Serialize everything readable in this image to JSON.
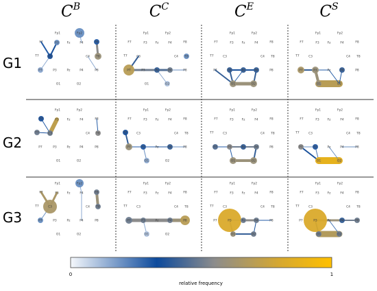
{
  "columns": [
    {
      "base": "C",
      "sup": "B"
    },
    {
      "base": "C",
      "sup": "C"
    },
    {
      "base": "C",
      "sup": "E"
    },
    {
      "base": "C",
      "sup": "S"
    }
  ],
  "rows": [
    "G1",
    "G2",
    "G3"
  ],
  "electrodes": [
    "Fp1",
    "Fp2",
    "F7",
    "F3",
    "Fz",
    "F4",
    "F8",
    "T7",
    "C3",
    "C4",
    "T8",
    "P7",
    "P3",
    "Pz",
    "P4",
    "P8",
    "O1",
    "O2"
  ],
  "colorbar": {
    "min_label": "0",
    "max_label": "1",
    "caption": "relative frequency",
    "stops": [
      "#f5f8fc",
      "#0d4a9c",
      "#8c8c8c",
      "#d6a830",
      "#ffc000"
    ]
  },
  "panels": [
    {
      "row": 0,
      "col": 0,
      "nodes": {
        "Fp2": {
          "f": 0.2,
          "r": 7
        },
        "F3": {
          "f": 0.2,
          "r": 4
        },
        "C3": {
          "f": 0.35,
          "r": 4
        },
        "F8": {
          "f": 0.3,
          "r": 4
        },
        "T8": {
          "f": 0.6,
          "r": 5
        },
        "P7": {
          "f": 0.15,
          "r": 4
        }
      },
      "edges": [
        [
          "F7",
          "C3",
          0.3,
          2
        ],
        [
          "C3",
          "P7",
          0.15,
          1
        ],
        [
          "C3",
          "F3",
          0.35,
          2
        ],
        [
          "Fp2",
          "F4",
          0.15,
          1
        ],
        [
          "F8",
          "T8",
          0.55,
          3
        ],
        [
          "C4",
          "P8",
          0.15,
          1
        ]
      ]
    },
    {
      "row": 0,
      "col": 1,
      "nodes": {
        "P7": {
          "f": 0.7,
          "r": 8
        },
        "O2": {
          "f": 0.1,
          "r": 4
        },
        "P4": {
          "f": 0.5,
          "r": 4
        },
        "T8": {
          "f": 0.2,
          "r": 4
        },
        "Pz": {
          "f": 0.4,
          "r": 4
        }
      },
      "edges": [
        [
          "P7",
          "Pz",
          0.5,
          3
        ],
        [
          "Pz",
          "P4",
          0.45,
          3
        ],
        [
          "Pz",
          "O2",
          0.15,
          1
        ],
        [
          "P4",
          "P8",
          0.2,
          1
        ],
        [
          "C3",
          "P7",
          0.4,
          2
        ]
      ]
    },
    {
      "row": 0,
      "col": 2,
      "nodes": {
        "P3": {
          "f": 0.4,
          "r": 4
        },
        "P4": {
          "f": 0.4,
          "r": 4
        },
        "Pz": {
          "f": 0.4,
          "r": 4
        },
        "O1": {
          "f": 0.6,
          "r": 5
        },
        "O2": {
          "f": 0.6,
          "r": 5
        }
      },
      "edges": [
        [
          "O1",
          "O2",
          0.6,
          5
        ],
        [
          "P7",
          "O1",
          0.4,
          2
        ],
        [
          "P3",
          "O1",
          0.4,
          2
        ],
        [
          "P4",
          "O2",
          0.4,
          2
        ],
        [
          "P3",
          "Pz",
          0.35,
          2
        ],
        [
          "Pz",
          "P4",
          0.35,
          2
        ],
        [
          "Pz",
          "O1",
          0.3,
          1
        ]
      ]
    },
    {
      "row": 0,
      "col": 3,
      "nodes": {
        "P7": {
          "f": 0.65,
          "r": 5
        },
        "P3": {
          "f": 0.6,
          "r": 5
        },
        "O1": {
          "f": 0.6,
          "r": 4
        },
        "P4": {
          "f": 0.4,
          "r": 4
        }
      },
      "edges": [
        [
          "O1",
          "O2",
          0.7,
          10
        ],
        [
          "P3",
          "O1",
          0.6,
          4
        ],
        [
          "P7",
          "P3",
          0.4,
          2
        ],
        [
          "Pz",
          "O2",
          0.3,
          1
        ],
        [
          "P4",
          "O2",
          0.3,
          1
        ],
        [
          "P3",
          "Pz",
          0.3,
          1
        ]
      ]
    },
    {
      "row": 1,
      "col": 0,
      "nodes": {
        "F7": {
          "f": 0.35,
          "r": 4
        },
        "T7": {
          "f": 0.5,
          "r": 4
        },
        "C3": {
          "f": 0.5,
          "r": 4
        },
        "T8": {
          "f": 0.55,
          "r": 4
        }
      },
      "edges": [
        [
          "F3",
          "C3",
          0.72,
          6
        ],
        [
          "F7",
          "C3",
          0.3,
          1
        ],
        [
          "T7",
          "C3",
          0.35,
          1
        ],
        [
          "F8",
          "T8",
          0.3,
          1
        ]
      ]
    },
    {
      "row": 1,
      "col": 1,
      "nodes": {
        "T7": {
          "f": 0.35,
          "r": 4
        },
        "P7": {
          "f": 0.6,
          "r": 5
        },
        "O1": {
          "f": 0.15,
          "r": 4
        },
        "P3": {
          "f": 0.3,
          "r": 4
        },
        "P4": {
          "f": 0.4,
          "r": 4
        }
      },
      "edges": [
        [
          "T7",
          "P7",
          0.4,
          2
        ],
        [
          "P7",
          "P3",
          0.35,
          1
        ],
        [
          "P3",
          "O1",
          0.2,
          1
        ],
        [
          "P7",
          "Pz",
          0.3,
          1
        ],
        [
          "Pz",
          "P4",
          0.35,
          1
        ],
        [
          "P4",
          "P8",
          0.2,
          1
        ]
      ]
    },
    {
      "row": 1,
      "col": 2,
      "nodes": {
        "P7": {
          "f": 0.45,
          "r": 4
        },
        "P3": {
          "f": 0.55,
          "r": 4
        },
        "Pz": {
          "f": 0.4,
          "r": 4
        },
        "P4": {
          "f": 0.5,
          "r": 4
        },
        "O1": {
          "f": 0.6,
          "r": 5
        },
        "O2": {
          "f": 0.6,
          "r": 5
        }
      },
      "edges": [
        [
          "O1",
          "O2",
          0.6,
          4
        ],
        [
          "P3",
          "Pz",
          0.5,
          2
        ],
        [
          "Pz",
          "P4",
          0.5,
          2
        ],
        [
          "P4",
          "O2",
          0.4,
          2
        ],
        [
          "P3",
          "O1",
          0.3,
          1
        ],
        [
          "P7",
          "P3",
          0.3,
          1
        ]
      ]
    },
    {
      "row": 1,
      "col": 3,
      "nodes": {
        "P7": {
          "f": 0.55,
          "r": 4
        },
        "O1": {
          "f": 0.85,
          "r": 5
        },
        "O2": {
          "f": 0.8,
          "r": 4
        },
        "P3": {
          "f": 0.3,
          "r": 4
        }
      },
      "edges": [
        [
          "O1",
          "O2",
          0.88,
          10
        ],
        [
          "P7",
          "O1",
          0.35,
          2
        ],
        [
          "P3",
          "O1",
          0.25,
          1
        ],
        [
          "Pz",
          "O2",
          0.2,
          1
        ],
        [
          "P4",
          "P8",
          0.2,
          1
        ],
        [
          "P7",
          "P3",
          0.2,
          1
        ]
      ]
    },
    {
      "row": 2,
      "col": 0,
      "nodes": {
        "C3": {
          "f": 0.65,
          "r": 10
        },
        "Fp2": {
          "f": 0.2,
          "r": 6
        },
        "F8": {
          "f": 0.5,
          "r": 4
        },
        "T8": {
          "f": 0.5,
          "r": 4
        },
        "P7": {
          "f": 0.2,
          "r": 4
        }
      },
      "edges": [
        [
          "F7",
          "C3",
          0.65,
          3
        ],
        [
          "F3",
          "C3",
          0.65,
          3
        ],
        [
          "F8",
          "T8",
          0.6,
          4
        ],
        [
          "C3",
          "P7",
          0.2,
          1
        ],
        [
          "Fp2",
          "F4",
          0.15,
          1
        ],
        [
          "F4",
          "P4",
          0.15,
          1
        ]
      ]
    },
    {
      "row": 2,
      "col": 1,
      "nodes": {
        "P8": {
          "f": 0.7,
          "r": 7
        },
        "P7": {
          "f": 0.5,
          "r": 5
        },
        "O1": {
          "f": 0.1,
          "r": 4
        },
        "P3": {
          "f": 0.5,
          "r": 4
        },
        "P4": {
          "f": 0.5,
          "r": 4
        }
      },
      "edges": [
        [
          "P7",
          "P3",
          0.55,
          5
        ],
        [
          "P3",
          "Pz",
          0.55,
          5
        ],
        [
          "Pz",
          "P4",
          0.55,
          5
        ],
        [
          "P4",
          "P8",
          0.6,
          5
        ],
        [
          "P3",
          "O1",
          0.15,
          1
        ]
      ]
    },
    {
      "row": 2,
      "col": 2,
      "nodes": {
        "P3": {
          "f": 0.82,
          "r": 17
        },
        "Pz": {
          "f": 0.5,
          "r": 4
        },
        "P4": {
          "f": 0.5,
          "r": 4
        },
        "O1": {
          "f": 0.6,
          "r": 4
        },
        "O2": {
          "f": 0.5,
          "r": 4
        }
      },
      "edges": [
        [
          "Pz",
          "P4",
          0.55,
          3
        ],
        [
          "P3",
          "O1",
          0.5,
          2
        ],
        [
          "O1",
          "O2",
          0.4,
          2
        ],
        [
          "P4",
          "O2",
          0.35,
          1
        ],
        [
          "P4",
          "P8",
          0.3,
          1
        ],
        [
          "P3",
          "Pz",
          0.3,
          1
        ]
      ]
    },
    {
      "row": 2,
      "col": 3,
      "nodes": {
        "P3": {
          "f": 0.82,
          "r": 17
        },
        "O1": {
          "f": 0.5,
          "r": 4
        },
        "O2": {
          "f": 0.5,
          "r": 4
        },
        "P8": {
          "f": 0.5,
          "r": 4
        },
        "P4": {
          "f": 0.4,
          "r": 4
        }
      },
      "edges": [
        [
          "O1",
          "O2",
          0.68,
          9
        ],
        [
          "P3",
          "P4",
          0.6,
          3
        ],
        [
          "P4",
          "P8",
          0.5,
          2
        ],
        [
          "P3",
          "O1",
          0.4,
          2
        ],
        [
          "Pz",
          "O2",
          0.25,
          1
        ]
      ]
    }
  ]
}
